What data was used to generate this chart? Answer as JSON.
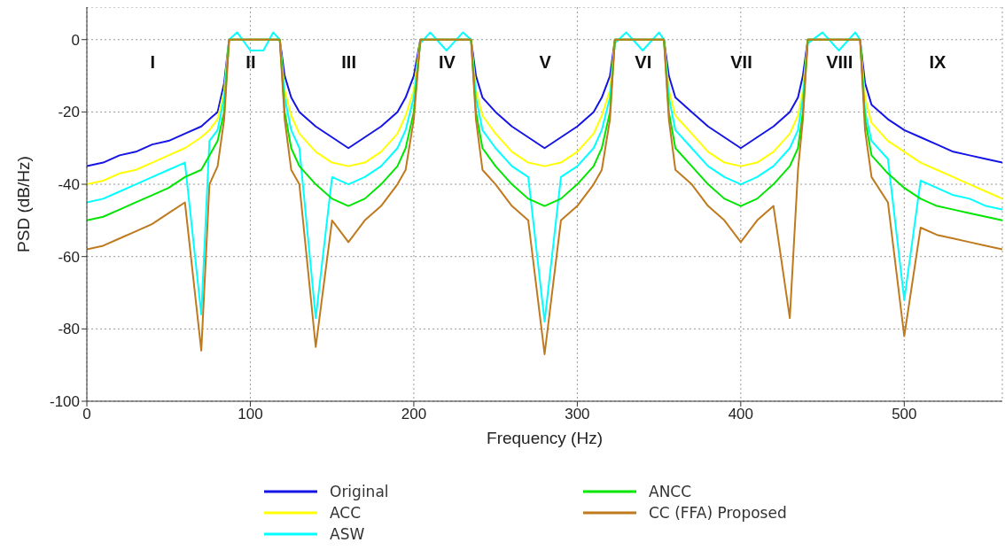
{
  "chart_data": {
    "type": "line",
    "xlabel": "Frequency (Hz)",
    "ylabel": "PSD (dB/Hz)",
    "xlim": [
      0,
      560
    ],
    "xticks": [
      0,
      100,
      200,
      300,
      400,
      500
    ],
    "ylim": [
      -100,
      9
    ],
    "yticks": [
      -100,
      -80,
      -60,
      -40,
      -20,
      0
    ],
    "grid": true,
    "legend": "bottom",
    "marker": "none",
    "line_style": "solid",
    "annotations": [
      "I",
      "II",
      "III",
      "IV",
      "V",
      "VI",
      "VII",
      "VIII",
      "IX"
    ],
    "x": [
      0,
      10,
      20,
      30,
      40,
      50,
      60,
      70,
      75,
      80,
      84,
      87,
      92,
      100,
      108,
      114,
      118,
      121,
      125,
      130,
      140,
      150,
      160,
      170,
      180,
      190,
      195,
      200,
      204,
      210,
      220,
      230,
      235,
      238,
      242,
      250,
      260,
      270,
      280,
      290,
      300,
      310,
      315,
      320,
      323,
      330,
      340,
      350,
      353,
      356,
      360,
      370,
      380,
      390,
      400,
      410,
      420,
      430,
      435,
      438,
      441,
      450,
      460,
      470,
      473,
      476,
      480,
      490,
      500,
      510,
      520,
      530,
      540,
      550,
      560
    ],
    "series": [
      {
        "name": "Original",
        "color": "#1414e6",
        "values": [
          -35,
          -34,
          -32,
          -31,
          -29,
          -28,
          -26,
          -24,
          -22,
          -20,
          -12,
          0,
          0,
          0,
          0,
          0,
          0,
          -10,
          -16,
          -20,
          -24,
          -27,
          -30,
          -27,
          -24,
          -20,
          -16,
          -10,
          0,
          0,
          0,
          0,
          0,
          -10,
          -16,
          -20,
          -24,
          -27,
          -30,
          -27,
          -24,
          -20,
          -16,
          -10,
          0,
          0,
          0,
          0,
          0,
          -10,
          -16,
          -20,
          -24,
          -27,
          -30,
          -27,
          -24,
          -20,
          -16,
          -10,
          0,
          0,
          0,
          0,
          0,
          -12,
          -18,
          -22,
          -25,
          -27,
          -29,
          -31,
          -32,
          -33,
          -34
        ]
      },
      {
        "name": "ACC",
        "color": "#ffff00",
        "values": [
          -40,
          -39,
          -37,
          -36,
          -34,
          -32,
          -30,
          -27,
          -25,
          -22,
          -14,
          0,
          0,
          0,
          0,
          0,
          0,
          -14,
          -21,
          -26,
          -31,
          -34,
          -35,
          -34,
          -31,
          -26,
          -21,
          -14,
          0,
          0,
          0,
          0,
          0,
          -14,
          -21,
          -26,
          -31,
          -34,
          -35,
          -34,
          -31,
          -26,
          -21,
          -14,
          0,
          0,
          0,
          0,
          0,
          -14,
          -21,
          -26,
          -31,
          -34,
          -35,
          -34,
          -31,
          -26,
          -21,
          -14,
          0,
          0,
          0,
          0,
          0,
          -16,
          -23,
          -28,
          -31,
          -34,
          -36,
          -38,
          -40,
          -42,
          -44
        ]
      },
      {
        "name": "ASW",
        "color": "#00ffff",
        "values": [
          -45,
          -44,
          -42,
          -40,
          -38,
          -36,
          -34,
          -76,
          -28,
          -25,
          -16,
          0,
          2,
          -3,
          -3,
          2,
          0,
          -16,
          -25,
          -30,
          -77,
          -38,
          -40,
          -38,
          -35,
          -30,
          -25,
          -16,
          -1,
          2,
          -3,
          2,
          0,
          -16,
          -25,
          -30,
          -35,
          -38,
          -78,
          -38,
          -35,
          -30,
          -25,
          -16,
          -1,
          2,
          -3,
          2,
          0,
          -16,
          -25,
          -30,
          -35,
          -38,
          -40,
          -38,
          -35,
          -30,
          -25,
          -16,
          -1,
          2,
          -3,
          2,
          0,
          -20,
          -28,
          -33,
          -72,
          -39,
          -41,
          -43,
          -44,
          -46,
          -47
        ]
      },
      {
        "name": "ANCC",
        "color": "#00e600",
        "values": [
          -50,
          -49,
          -47,
          -45,
          -43,
          -41,
          -38,
          -36,
          -32,
          -28,
          -20,
          0,
          0,
          0,
          0,
          0,
          0,
          -20,
          -30,
          -35,
          -40,
          -44,
          -46,
          -44,
          -40,
          -35,
          -30,
          -20,
          0,
          0,
          0,
          0,
          0,
          -20,
          -30,
          -35,
          -40,
          -44,
          -46,
          -44,
          -40,
          -35,
          -30,
          -20,
          0,
          0,
          0,
          0,
          0,
          -20,
          -30,
          -35,
          -40,
          -44,
          -46,
          -44,
          -40,
          -35,
          -30,
          -20,
          0,
          0,
          0,
          0,
          0,
          -22,
          -32,
          -37,
          -41,
          -44,
          -46,
          -47,
          -48,
          -49,
          -50
        ]
      },
      {
        "name": "CC (FFA) Proposed",
        "color": "#c07a1e",
        "values": [
          -58,
          -57,
          -55,
          -53,
          -51,
          -48,
          -45,
          -86,
          -40,
          -35,
          -22,
          0,
          0,
          0,
          0,
          0,
          0,
          -22,
          -36,
          -40,
          -85,
          -50,
          -56,
          -50,
          -46,
          -40,
          -36,
          -22,
          0,
          0,
          0,
          0,
          0,
          -22,
          -36,
          -40,
          -46,
          -50,
          -87,
          -50,
          -46,
          -40,
          -36,
          -22,
          0,
          0,
          0,
          0,
          0,
          -22,
          -36,
          -40,
          -46,
          -50,
          -56,
          -50,
          -46,
          -77,
          -36,
          -22,
          0,
          0,
          0,
          0,
          0,
          -25,
          -38,
          -45,
          -82,
          -52,
          -54,
          -55,
          -56,
          -57,
          -58
        ]
      }
    ]
  }
}
